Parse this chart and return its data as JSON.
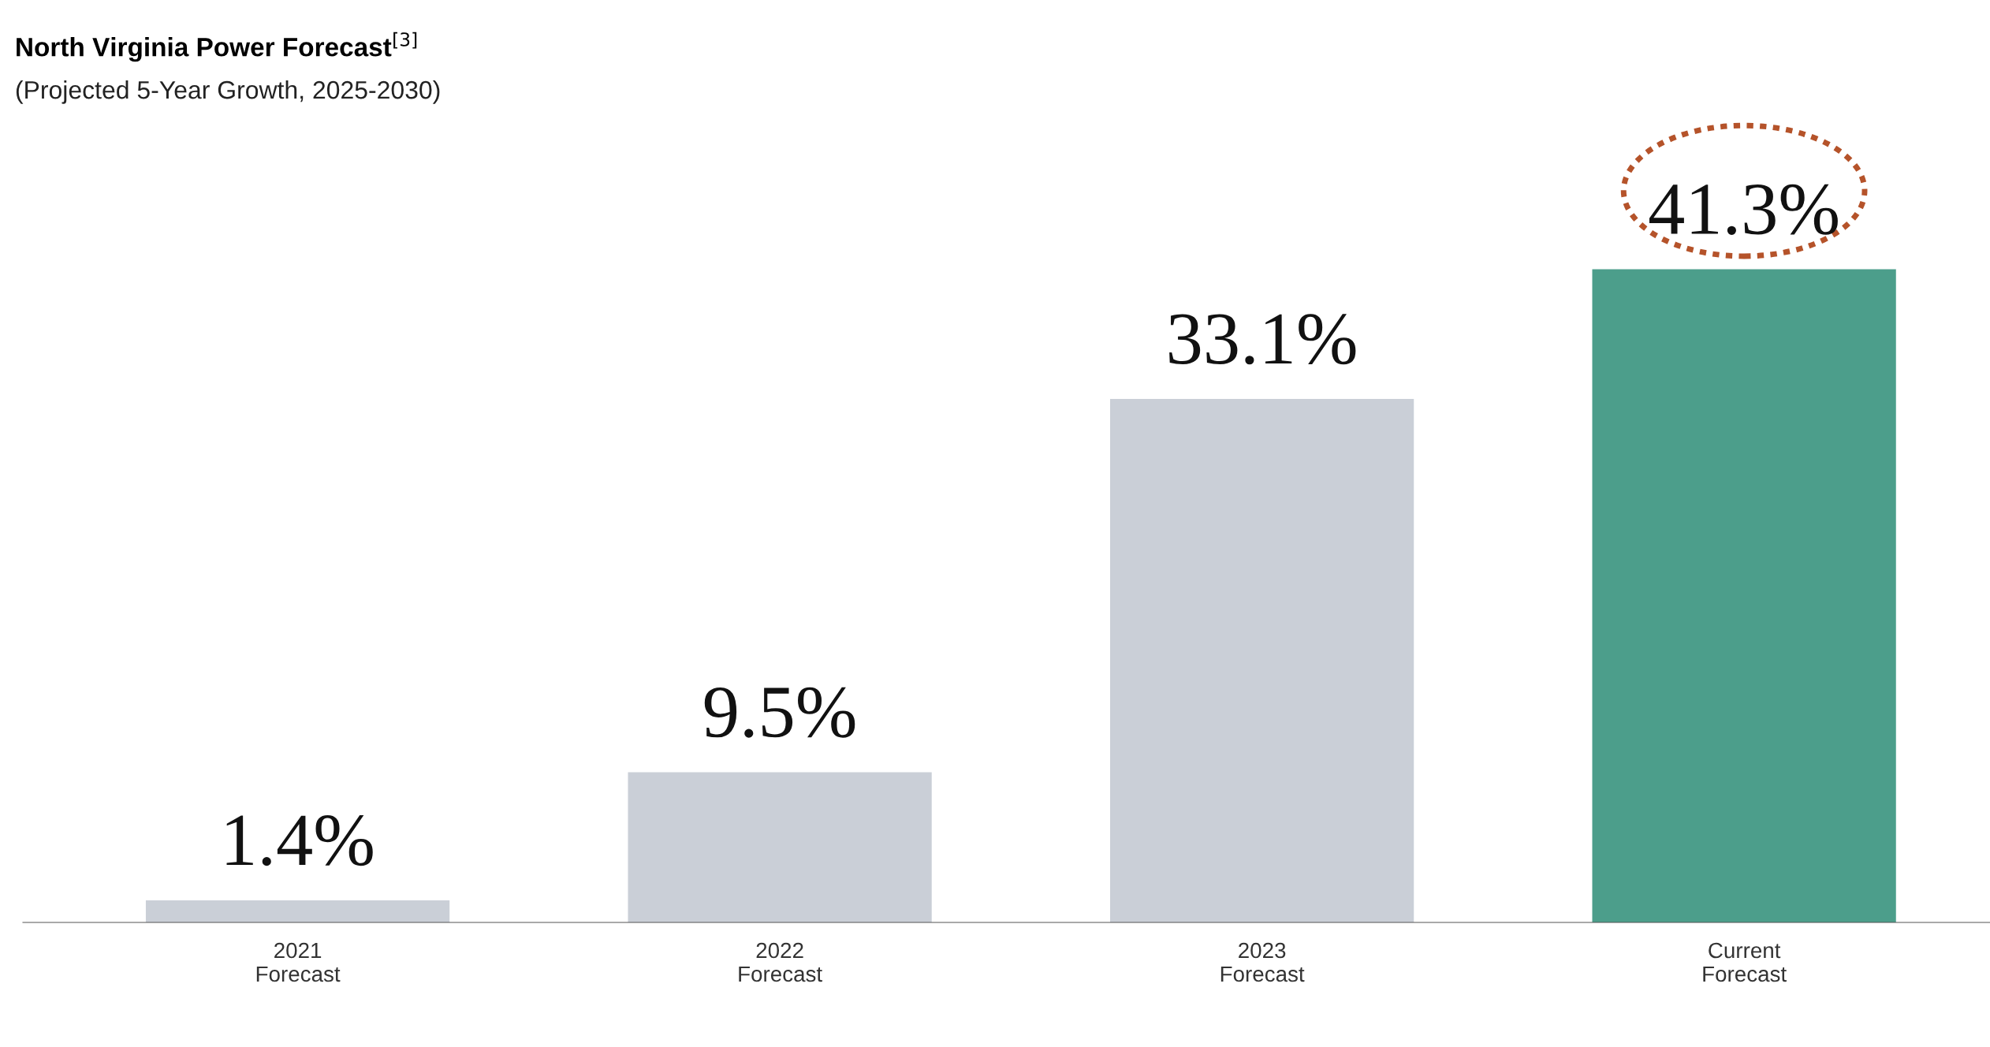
{
  "chart_data": {
    "type": "bar",
    "title": "North Virginia Power Forecast$^{[3]}$",
    "subtitle": "(Projected 5-Year Growth, 2025-2030)",
    "categories": [
      "2021\nForecast",
      "2022\nForecast",
      "2023\nForecast",
      "Current\nForecast"
    ],
    "values": [
      1.4,
      9.5,
      33.1,
      41.3
    ],
    "colors": [
      "#cacfd7",
      "#cacfd7",
      "#cacfd7",
      "#4c9e8b"
    ],
    "value_labels": [
      "1.4%",
      "9.5%",
      "33.1%",
      "41.3%"
    ],
    "grid": false,
    "legend": false
  }
}
